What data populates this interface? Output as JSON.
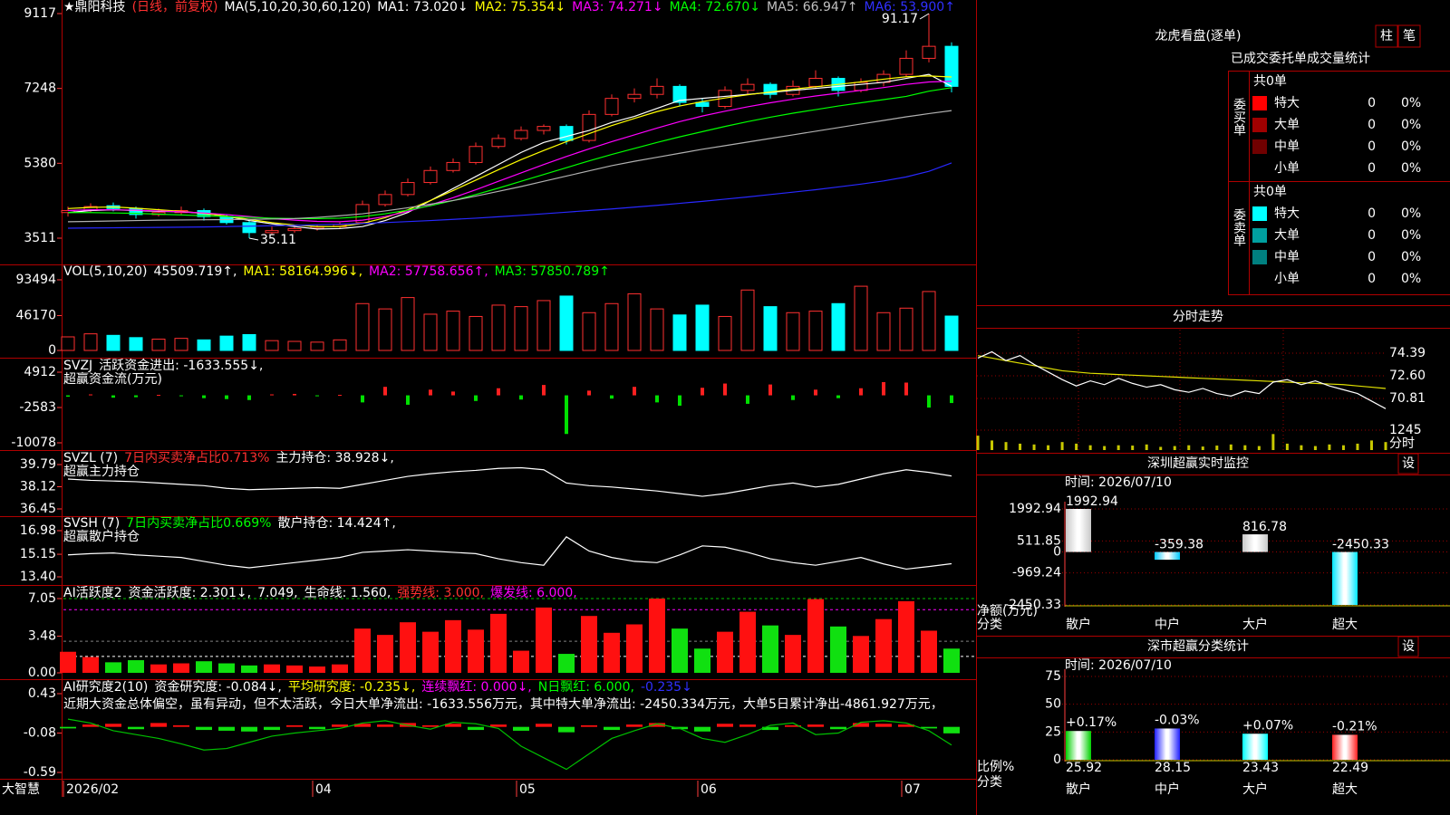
{
  "app": {
    "brand": "大智慧",
    "xticks": [
      {
        "value": 0,
        "label": "2026/02"
      },
      {
        "value": 11,
        "label": "04"
      },
      {
        "value": 20,
        "label": "05"
      },
      {
        "value": 28,
        "label": "06"
      },
      {
        "value": 37,
        "label": "07"
      }
    ]
  },
  "main": {
    "header": [
      {
        "text": "★鼎阳科技",
        "color": "#ffffff"
      },
      {
        "text": "(日线，前复权)",
        "color": "#ff3030"
      },
      {
        "text": "MA(5,10,20,30,60,120)",
        "color": "#ffffff"
      },
      {
        "text": "MA1: 73.020↓",
        "color": "#ffffff"
      },
      {
        "text": "MA2: 75.354↓",
        "color": "#ffff00"
      },
      {
        "text": "MA3: 74.271↓",
        "color": "#ff00ff"
      },
      {
        "text": "MA4: 72.670↓",
        "color": "#00ff00"
      },
      {
        "text": "MA5: 66.947↑",
        "color": "#c0c0c0"
      },
      {
        "text": "MA6: 53.900↑",
        "color": "#3030ff"
      }
    ],
    "ylim": [
      3511,
      9117
    ],
    "yticks": [
      9117,
      7248,
      5380,
      3511
    ],
    "up_color": "#ff3030",
    "down_color": "#00ffff",
    "high_label": "91.17",
    "low_label": "35.11",
    "candles": [
      [
        4150,
        4300,
        4050,
        4200
      ],
      [
        4200,
        4380,
        4150,
        4300
      ],
      [
        4320,
        4400,
        4180,
        4250
      ],
      [
        4250,
        4300,
        4000,
        4100
      ],
      [
        4100,
        4250,
        4050,
        4150
      ],
      [
        4150,
        4300,
        4100,
        4200
      ],
      [
        4200,
        4250,
        3950,
        4050
      ],
      [
        4050,
        4100,
        3850,
        3900
      ],
      [
        3900,
        3950,
        3511,
        3650
      ],
      [
        3650,
        3800,
        3600,
        3700
      ],
      [
        3700,
        3820,
        3650,
        3750
      ],
      [
        3760,
        3850,
        3700,
        3800
      ],
      [
        3800,
        3900,
        3750,
        3850
      ],
      [
        3900,
        4450,
        3880,
        4350
      ],
      [
        4350,
        4700,
        4300,
        4600
      ],
      [
        4600,
        5000,
        4550,
        4900
      ],
      [
        4900,
        5300,
        4850,
        5200
      ],
      [
        5200,
        5500,
        5150,
        5400
      ],
      [
        5400,
        5900,
        5350,
        5800
      ],
      [
        5800,
        6100,
        5750,
        6000
      ],
      [
        6000,
        6300,
        5950,
        6200
      ],
      [
        6200,
        6350,
        6100,
        6300
      ],
      [
        6300,
        6350,
        5850,
        5950
      ],
      [
        5950,
        6700,
        5900,
        6600
      ],
      [
        6600,
        7100,
        6550,
        7000
      ],
      [
        7000,
        7250,
        6900,
        7100
      ],
      [
        7100,
        7500,
        7000,
        7300
      ],
      [
        7300,
        7350,
        6800,
        6900
      ],
      [
        6900,
        7000,
        6650,
        6800
      ],
      [
        6800,
        7300,
        6750,
        7200
      ],
      [
        7200,
        7500,
        7100,
        7350
      ],
      [
        7350,
        7400,
        7000,
        7100
      ],
      [
        7100,
        7450,
        7050,
        7300
      ],
      [
        7300,
        7700,
        7250,
        7500
      ],
      [
        7500,
        7550,
        7050,
        7200
      ],
      [
        7200,
        7500,
        7150,
        7400
      ],
      [
        7400,
        7700,
        7300,
        7600
      ],
      [
        7600,
        8200,
        7550,
        8000
      ],
      [
        8000,
        9117,
        7900,
        8300
      ],
      [
        8300,
        8400,
        7150,
        7300
      ]
    ],
    "ma": [
      {
        "color": "#ffffff",
        "values": [
          4150,
          4200,
          4220,
          4200,
          4180,
          4170,
          4130,
          4060,
          3950,
          3870,
          3800,
          3740,
          3750,
          3800,
          3950,
          4150,
          4450,
          4750,
          5050,
          5350,
          5650,
          5900,
          6050,
          6200,
          6400,
          6550,
          6750,
          6950,
          7000,
          7050,
          7100,
          7150,
          7200,
          7250,
          7300,
          7350,
          7400,
          7500,
          7600,
          7302
        ]
      },
      {
        "color": "#ffff00",
        "values": [
          4250,
          4280,
          4290,
          4260,
          4220,
          4180,
          4130,
          4060,
          3980,
          3900,
          3840,
          3800,
          3800,
          3880,
          4020,
          4220,
          4450,
          4700,
          4960,
          5220,
          5470,
          5700,
          5920,
          6120,
          6320,
          6500,
          6670,
          6810,
          6920,
          7010,
          7090,
          7160,
          7230,
          7290,
          7350,
          7410,
          7480,
          7540,
          7560,
          7535
        ]
      },
      {
        "color": "#ff00ff",
        "values": [
          4200,
          4220,
          4220,
          4210,
          4190,
          4170,
          4140,
          4100,
          4050,
          4000,
          3960,
          3930,
          3920,
          3960,
          4050,
          4180,
          4340,
          4520,
          4720,
          4930,
          5140,
          5350,
          5550,
          5740,
          5920,
          6090,
          6260,
          6420,
          6560,
          6680,
          6790,
          6890,
          6980,
          7060,
          7130,
          7200,
          7270,
          7350,
          7410,
          7427
        ]
      },
      {
        "color": "#00ff00",
        "values": [
          4150,
          4150,
          4140,
          4130,
          4110,
          4090,
          4070,
          4050,
          4030,
          4010,
          4000,
          4000,
          4010,
          4050,
          4120,
          4210,
          4320,
          4450,
          4600,
          4760,
          4930,
          5100,
          5270,
          5440,
          5600,
          5750,
          5900,
          6040,
          6170,
          6300,
          6420,
          6530,
          6630,
          6720,
          6810,
          6890,
          6970,
          7050,
          7180,
          7267
        ]
      },
      {
        "color": "#b0b0b0",
        "values": [
          3920,
          3930,
          3940,
          3950,
          3960,
          3965,
          3970,
          3975,
          3980,
          3990,
          4000,
          4030,
          4070,
          4120,
          4190,
          4270,
          4360,
          4450,
          4560,
          4680,
          4800,
          4930,
          5060,
          5190,
          5320,
          5430,
          5530,
          5630,
          5730,
          5820,
          5910,
          6000,
          6090,
          6180,
          6270,
          6360,
          6450,
          6540,
          6620,
          6695
        ]
      },
      {
        "color": "#2828ff",
        "values": [
          3760,
          3765,
          3770,
          3775,
          3780,
          3785,
          3790,
          3800,
          3810,
          3820,
          3830,
          3845,
          3860,
          3880,
          3900,
          3925,
          3950,
          3980,
          4010,
          4045,
          4080,
          4120,
          4160,
          4200,
          4240,
          4285,
          4330,
          4380,
          4430,
          4485,
          4540,
          4600,
          4660,
          4720,
          4790,
          4860,
          4940,
          5040,
          5180,
          5390
        ]
      }
    ]
  },
  "volume": {
    "header": [
      {
        "text": "VOL(5,10,20)",
        "color": "#ffffff"
      },
      {
        "text": "45509.719↑,",
        "color": "#ffffff"
      },
      {
        "text": "MA1: 58164.996↓,",
        "color": "#ffff00"
      },
      {
        "text": "MA2: 57758.656↑,",
        "color": "#ff00ff"
      },
      {
        "text": "MA3: 57850.789↑",
        "color": "#00ff00"
      }
    ],
    "ylim": [
      0,
      93494
    ],
    "yticks": [
      93494,
      46170,
      0
    ],
    "values": [
      18000,
      22000,
      20000,
      17000,
      15000,
      16000,
      14000,
      19000,
      21000,
      13000,
      12000,
      11000,
      14000,
      62000,
      55000,
      70000,
      48000,
      52000,
      45000,
      60000,
      58000,
      66000,
      72000,
      50000,
      62000,
      75000,
      55000,
      47000,
      60000,
      45000,
      80000,
      58000,
      50000,
      52000,
      62000,
      85000,
      50000,
      56000,
      78000,
      45510
    ]
  },
  "svzj": {
    "header": [
      {
        "text": "SVZJ",
        "color": "#ffffff"
      },
      {
        "text": "活跃资金进出: -1633.555↓,",
        "color": "#ffffff"
      }
    ],
    "subtitle": "超赢资金流(万元)",
    "ylim": [
      -10078,
      4912
    ],
    "yticks": [
      4912,
      -2583,
      -10078
    ],
    "pos_color": "#ff2020",
    "neg_color": "#00e000",
    "values": [
      -300,
      200,
      -500,
      -400,
      100,
      -200,
      -600,
      -800,
      -1000,
      200,
      300,
      -200,
      100,
      -1500,
      1800,
      -2000,
      1200,
      800,
      -1200,
      1500,
      -900,
      2200,
      -8200,
      1000,
      -700,
      1800,
      -1500,
      -2200,
      1600,
      2500,
      -1800,
      2300,
      -1000,
      1200,
      -600,
      1500,
      2800,
      2700,
      -2600,
      -1634
    ]
  },
  "svzl": {
    "header": [
      {
        "text": "SVZL (7)",
        "color": "#ffffff"
      },
      {
        "text": "7日内买卖净占比0.713%",
        "color": "#ff3030"
      },
      {
        "text": "主力持仓: 38.928↓,",
        "color": "#ffffff"
      }
    ],
    "subtitle": "超赢主力持仓",
    "ylim": [
      36.45,
      39.79
    ],
    "yticks": [
      39.79,
      38.12,
      36.45
    ],
    "color": "#ffffff",
    "values": [
      38.7,
      38.6,
      38.55,
      38.5,
      38.4,
      38.3,
      38.2,
      38.0,
      37.9,
      37.95,
      38.0,
      38.05,
      38.0,
      38.3,
      38.6,
      38.9,
      39.1,
      39.25,
      39.35,
      39.5,
      39.55,
      39.4,
      38.4,
      38.2,
      38.1,
      37.95,
      37.8,
      37.6,
      37.4,
      37.6,
      37.9,
      38.2,
      38.4,
      38.1,
      38.3,
      38.7,
      39.1,
      39.4,
      39.2,
      38.93
    ]
  },
  "svsh": {
    "header": [
      {
        "text": "SVSH (7)",
        "color": "#ffffff"
      },
      {
        "text": "7日内买卖净占比0.669%",
        "color": "#00ff00"
      },
      {
        "text": "散户持仓: 14.424↑,",
        "color": "#ffffff"
      }
    ],
    "subtitle": "超赢散户持仓",
    "ylim": [
      13.4,
      16.98
    ],
    "yticks": [
      16.98,
      15.15,
      {
        "value": 13.4,
        "label": "13.40"
      }
    ],
    "color": "#ffffff",
    "values": [
      15.1,
      15.2,
      15.25,
      15.1,
      15.0,
      14.9,
      14.6,
      14.3,
      14.1,
      14.3,
      14.5,
      14.7,
      14.9,
      15.3,
      15.4,
      15.5,
      15.4,
      15.3,
      15.2,
      14.8,
      14.5,
      14.3,
      16.5,
      15.4,
      14.9,
      14.6,
      14.5,
      15.1,
      15.8,
      15.7,
      15.3,
      14.8,
      14.5,
      14.3,
      14.6,
      14.9,
      14.4,
      14.0,
      14.2,
      14.42
    ]
  },
  "active": {
    "header": [
      {
        "text": "AI活跃度2",
        "color": "#ffffff"
      },
      {
        "text": "资金活跃度: 2.301↓,",
        "color": "#ffffff"
      },
      {
        "text": "7.049,",
        "color": "#ffffff"
      },
      {
        "text": "生命线: 1.560,",
        "color": "#ffffff"
      },
      {
        "text": "强势线: 3.000,",
        "color": "#ff3030"
      },
      {
        "text": "爆发线: 6.000,",
        "color": "#ff00ff"
      }
    ],
    "ylim": [
      0,
      7.05
    ],
    "yticks": [
      7.05,
      3.48,
      {
        "value": 0,
        "label": "0.00"
      }
    ],
    "levels": [
      {
        "value": 7.049,
        "color": "#00c000"
      },
      {
        "value": 6.0,
        "color": "#ff00ff"
      },
      {
        "value": 3.0,
        "color": "#808080"
      },
      {
        "value": 1.56,
        "color": "#ffffff"
      }
    ],
    "values": [
      2.0,
      1.5,
      1.0,
      1.2,
      0.8,
      0.9,
      1.1,
      0.9,
      0.7,
      0.8,
      0.7,
      0.6,
      0.8,
      4.2,
      3.6,
      4.8,
      3.9,
      5.0,
      4.1,
      5.6,
      2.1,
      6.2,
      1.8,
      5.4,
      3.8,
      4.6,
      7.05,
      4.2,
      2.3,
      3.9,
      5.8,
      4.5,
      3.6,
      7.0,
      4.4,
      3.5,
      5.1,
      6.8,
      4.0,
      2.3
    ]
  },
  "research": {
    "header": [
      {
        "text": "AI研究度2(10)",
        "color": "#ffffff"
      },
      {
        "text": "资金研究度: -0.084↓,",
        "color": "#ffffff"
      },
      {
        "text": "平均研究度: -0.235↓,",
        "color": "#ffff00"
      },
      {
        "text": "连续飘红: 0.000↓,",
        "color": "#ff00ff"
      },
      {
        "text": "N日飘红: 6.000,",
        "color": "#00ff00"
      },
      {
        "text": "-0.235↓",
        "color": "#3030ff"
      }
    ],
    "subtitle": "近期大资金总体偏空，虽有异动，但不太活跃，今日大单净流出: -1633.556万元，其中特大单净流出: -2450.334万元，大单5日累计净出-4861.927万元，",
    "ylim": [
      -0.59,
      0.43
    ],
    "yticks": [
      0.43,
      -0.08,
      -0.59
    ],
    "line_color": "#00c000",
    "bars": [
      -0.02,
      0.03,
      0.04,
      -0.03,
      0.05,
      0.02,
      -0.04,
      -0.05,
      -0.06,
      -0.04,
      0.02,
      -0.03,
      0.03,
      0.04,
      0.03,
      0.05,
      0.02,
      0.04,
      -0.04,
      0.03,
      -0.05,
      0.04,
      -0.07,
      0.02,
      -0.04,
      0.03,
      0.05,
      -0.03,
      -0.06,
      0.04,
      0.03,
      -0.04,
      0.02,
      0.03,
      -0.03,
      0.05,
      0.04,
      0.03,
      -0.02,
      -0.084
    ],
    "line": [
      0.1,
      0.05,
      -0.05,
      -0.1,
      -0.15,
      -0.22,
      -0.3,
      -0.28,
      -0.2,
      -0.12,
      -0.08,
      -0.05,
      -0.02,
      0.05,
      0.08,
      0.02,
      -0.03,
      0.06,
      0.04,
      -0.02,
      -0.25,
      -0.4,
      -0.55,
      -0.35,
      -0.15,
      -0.05,
      0.04,
      -0.02,
      -0.15,
      -0.2,
      -0.1,
      0.02,
      0.05,
      -0.1,
      -0.08,
      0.06,
      0.08,
      0.05,
      -0.05,
      -0.235
    ]
  },
  "ticket_stats": {
    "title": "龙虎看盘(逐单)",
    "buttons": [
      "柱",
      "笔"
    ],
    "heading": "已成交委托单成交量统计",
    "groups": [
      {
        "label": "委买单",
        "total": "共0单",
        "rows": [
          {
            "name": "特大",
            "color": "#ff0000",
            "count": "0",
            "pct": "0%"
          },
          {
            "name": "大单",
            "color": "#a00000",
            "count": "0",
            "pct": "0%"
          },
          {
            "name": "中单",
            "color": "#700000",
            "count": "0",
            "pct": "0%"
          },
          {
            "name": "小单",
            "count": "0",
            "pct": "0%"
          }
        ]
      },
      {
        "label": "委卖单",
        "total": "共0单",
        "rows": [
          {
            "name": "特大",
            "color": "#00ffff",
            "count": "0",
            "pct": "0%"
          },
          {
            "name": "大单",
            "color": "#00a0a0",
            "count": "0",
            "pct": "0%"
          },
          {
            "name": "中单",
            "color": "#008080",
            "count": "0",
            "pct": "0%"
          },
          {
            "name": "小单",
            "count": "0",
            "pct": "0%"
          }
        ]
      }
    ]
  },
  "intraday": {
    "title": "分时走势",
    "ylim": [
      70.81,
      74.39
    ],
    "yticks": [
      74.39,
      {
        "value": 72.6,
        "label": "72.60"
      },
      70.81
    ],
    "vol_ylim": [
      0,
      1245
    ],
    "vol_ticks": [
      1245
    ],
    "vol_label": "分时",
    "price": [
      74.0,
      74.5,
      73.8,
      74.2,
      73.5,
      72.9,
      72.3,
      71.8,
      72.2,
      71.9,
      72.4,
      72.0,
      71.7,
      71.9,
      71.5,
      71.3,
      71.6,
      71.2,
      71.0,
      71.4,
      71.2,
      72.1,
      72.3,
      71.9,
      72.2,
      71.8,
      71.5,
      71.2,
      70.6,
      70.0
    ],
    "average": [
      74.2,
      74.0,
      73.8,
      73.6,
      73.4,
      73.2,
      73.0,
      72.9,
      72.8,
      72.75,
      72.7,
      72.65,
      72.6,
      72.55,
      72.5,
      72.45,
      72.4,
      72.35,
      72.3,
      72.25,
      72.2,
      72.15,
      72.1,
      72.05,
      72.0,
      71.95,
      71.9,
      71.8,
      71.7,
      71.6
    ],
    "volume": [
      900,
      600,
      500,
      400,
      350,
      300,
      500,
      400,
      300,
      250,
      300,
      280,
      350,
      200,
      250,
      300,
      220,
      280,
      350,
      300,
      250,
      1000,
      400,
      300,
      250,
      350,
      300,
      400,
      600,
      500
    ]
  },
  "monitor": {
    "title": "深圳超赢实时监控",
    "button": "设",
    "time": "时间: 2026/07/10",
    "ylabel": "净额(万元)",
    "xlabel": "分类",
    "ylim": [
      -2450.33,
      1992.94
    ],
    "yticks": [
      1992.94,
      511.85,
      0,
      -969.24,
      -2450.33
    ],
    "categories": [
      "散户",
      "中户",
      "大户",
      "超大"
    ],
    "category_colors": [
      "#ff3030",
      "#00ffff",
      "#ff3030",
      "#00ffff"
    ],
    "colors": [
      "#c8c8c8",
      "#00c8ff",
      "#c8c8c8",
      "#00e8ff"
    ],
    "values": [
      1992.94,
      -359.38,
      816.78,
      -2450.33
    ]
  },
  "stats": {
    "title": "深市超赢分类统计",
    "button": "设",
    "time": "时间: 2026/07/10",
    "ylabel": "比例%",
    "xlabel": "分类",
    "ylim": [
      0,
      75
    ],
    "yticks": [
      75,
      50,
      25,
      0
    ],
    "categories": [
      "散户",
      "中户",
      "大户",
      "超大"
    ],
    "category_colors": [
      "#ffff00",
      "#3030ff",
      "#ff3030",
      "#ff3030"
    ],
    "colors": [
      "#00d000",
      "#2020ff",
      "#00ffff",
      "#ff2020"
    ],
    "values": [
      25.92,
      28.15,
      23.43,
      22.49
    ],
    "changes": [
      {
        "value": 0.17,
        "label": "+0.17%"
      },
      {
        "value": -0.03,
        "label": "-0.03%"
      },
      {
        "value": 0.07,
        "label": "+0.07%"
      },
      {
        "value": -0.21,
        "label": "-0.21%"
      }
    ]
  }
}
